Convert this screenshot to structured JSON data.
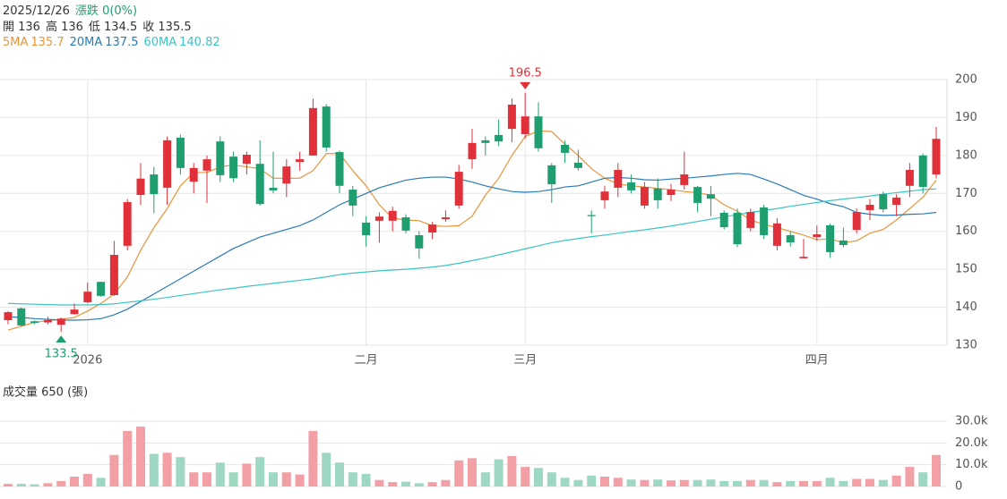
{
  "chart_data": [
    {
      "type": "candlestick",
      "info": {
        "date": "2025/12/26",
        "change": "漲跌 0(0%)",
        "open": "開 136",
        "high": "高 136",
        "low": "低 134.5",
        "close": "收 135.5"
      },
      "categories": [
        null,
        null,
        null,
        null,
        null,
        null,
        "2026",
        null,
        null,
        null,
        null,
        null,
        null,
        null,
        null,
        null,
        null,
        null,
        null,
        null,
        null,
        null,
        null,
        null,
        null,
        null,
        null,
        "二月",
        null,
        null,
        null,
        null,
        null,
        null,
        null,
        null,
        null,
        null,
        null,
        "三月",
        null,
        null,
        null,
        null,
        null,
        null,
        null,
        null,
        null,
        null,
        null,
        null,
        null,
        null,
        null,
        null,
        null,
        null,
        null,
        null,
        null,
        "四月",
        null,
        null,
        null,
        null,
        null,
        null,
        null,
        null,
        null
      ],
      "open": [
        136.6,
        139.7,
        136.3,
        136,
        135.4,
        138.2,
        141.3,
        146.7,
        143.2,
        156.2,
        169.6,
        175,
        171.5,
        184.7,
        173.1,
        176,
        183.7,
        179.7,
        177.8,
        177.8,
        171.5,
        172.6,
        178.3,
        180,
        192.9,
        180.9,
        171,
        162.3,
        162.8,
        162.8,
        163.7,
        159,
        159.7,
        163.2,
        166.8,
        179,
        184,
        185.4,
        187,
        185.6,
        190.3,
        177.4,
        182.8,
        178.1,
        164.3,
        168.2,
        171.5,
        172.9,
        166.8,
        171.3,
        169.6,
        172.2,
        171.7,
        169.8,
        164.9,
        164.9,
        160.9,
        166.3,
        156.2,
        159,
        152.9,
        158.5,
        161.6,
        157.6,
        160.4,
        165.6,
        169.8,
        167,
        172,
        180,
        175
      ],
      "high": [
        139,
        140,
        136.5,
        137.5,
        137.3,
        141,
        146.5,
        146.7,
        157.5,
        168.5,
        178,
        177,
        185,
        185.5,
        178,
        180,
        185,
        181,
        181,
        184,
        181,
        179,
        181,
        195,
        193.5,
        181.3,
        172,
        164,
        165,
        166.5,
        164.5,
        160,
        162.5,
        165.5,
        177.5,
        187,
        185,
        189.5,
        195,
        196.5,
        194,
        178,
        184,
        181.5,
        165.5,
        172,
        178,
        175,
        173,
        174,
        172.5,
        181,
        172,
        172,
        165.5,
        166,
        166,
        167,
        163.5,
        160,
        158,
        161.5,
        162,
        161,
        166,
        168.5,
        170.5,
        169.8,
        178,
        180.5,
        187.5
      ],
      "low": [
        135.5,
        135,
        135.5,
        135.5,
        133.5,
        138,
        141,
        142.8,
        143,
        155,
        167,
        164.8,
        167,
        175,
        170,
        167.5,
        173,
        173,
        175,
        166.8,
        170,
        169,
        176,
        180,
        181,
        170,
        164,
        156,
        157,
        160,
        159.5,
        152.8,
        158,
        162.5,
        166,
        176.5,
        180,
        182.5,
        183.5,
        184.5,
        181,
        167.5,
        178,
        176,
        159.5,
        166,
        169,
        170,
        166,
        166,
        168,
        171,
        165,
        164,
        160.5,
        155.8,
        160,
        158,
        155,
        156,
        152.9,
        157.5,
        153,
        155.8,
        159.5,
        163,
        165,
        164,
        169,
        170,
        174
      ],
      "close": [
        138.7,
        135.2,
        135.9,
        136.6,
        137,
        139.4,
        144.1,
        143,
        153.8,
        167.7,
        173.9,
        169.8,
        184,
        176.7,
        176.7,
        179,
        174.8,
        174,
        180.2,
        167.2,
        170.8,
        177.1,
        179,
        192.5,
        182.1,
        172,
        166.8,
        159,
        163.9,
        165.4,
        160.2,
        155.5,
        161.8,
        163.7,
        175.7,
        183.3,
        183.3,
        183.7,
        193.4,
        190.3,
        181.9,
        172.4,
        180.7,
        176.7,
        164,
        170.5,
        176.2,
        170.8,
        171.7,
        168.2,
        171,
        175,
        167.5,
        168.6,
        161.1,
        156.6,
        165.1,
        159,
        162.1,
        157.1,
        153.3,
        159.2,
        154.5,
        156.4,
        165.1,
        167,
        165.8,
        168.9,
        176.2,
        171.7,
        184.4
      ],
      "up_color": "#e0303a",
      "down_color": "#1f9e70",
      "series": [
        {
          "name": "5MA",
          "legend_value": 135.7,
          "color": "#e8953a",
          "values": [
            134,
            135,
            136,
            136.5,
            136.8,
            137.3,
            139,
            141,
            143.5,
            148,
            155,
            161,
            166,
            172,
            175.5,
            175.5,
            177,
            177.5,
            177,
            176.5,
            174,
            174,
            174,
            176,
            180.5,
            180.5,
            176,
            172,
            167,
            163.5,
            163,
            162.8,
            161.5,
            161.3,
            161.5,
            164,
            169.5,
            174,
            180,
            185,
            186.5,
            186.3,
            183,
            180,
            176.5,
            174,
            172.5,
            172,
            171.7,
            171.3,
            171,
            170.5,
            170.2,
            169.5,
            167,
            165.3,
            163,
            161.8,
            161,
            160,
            159,
            157.8,
            158,
            157,
            157.5,
            159.5,
            160.5,
            163,
            166,
            169,
            173.5
          ]
        },
        {
          "name": "20MA",
          "legend_value": 137.5,
          "color": "#2a7ab8",
          "values": [
            137.5,
            137.3,
            137,
            136.8,
            136.6,
            136.6,
            136.7,
            137,
            138,
            139.5,
            141.5,
            143.5,
            145.5,
            147.5,
            149.5,
            151.5,
            153.5,
            155.5,
            157,
            158.5,
            159.5,
            160.5,
            161.5,
            163,
            165,
            167,
            168.5,
            170,
            171.5,
            172.5,
            173.5,
            174,
            174.3,
            174.3,
            173.8,
            173,
            172,
            171.2,
            170.5,
            170.3,
            170.5,
            171,
            171.7,
            172,
            173,
            174,
            174.2,
            174,
            173.6,
            173.5,
            173.8,
            174,
            174.3,
            174.6,
            175,
            175.3,
            175,
            173.8,
            172.5,
            171,
            169.5,
            168.5,
            167.3,
            166.5,
            165,
            164.5,
            164.2,
            164.3,
            164.5,
            164.6,
            165
          ]
        },
        {
          "name": "60MA",
          "legend_value": 140.82,
          "color": "#3cc4c4",
          "values": [
            141,
            140.9,
            140.8,
            140.7,
            140.6,
            140.6,
            140.6,
            140.7,
            140.9,
            141.3,
            141.7,
            142.1,
            142.6,
            143.1,
            143.6,
            144.1,
            144.6,
            145,
            145.5,
            145.9,
            146.3,
            146.7,
            147.1,
            147.5,
            148,
            148.6,
            149,
            149.3,
            149.6,
            149.8,
            150,
            150.3,
            150.6,
            151,
            151.6,
            152.3,
            153,
            153.8,
            154.6,
            155.4,
            156.2,
            157,
            157.6,
            158.1,
            158.6,
            159,
            159.5,
            160,
            160.4,
            160.9,
            161.4,
            162,
            162.6,
            163.2,
            163.8,
            164.4,
            165,
            165.5,
            166,
            166.6,
            167.1,
            167.6,
            168.1,
            168.5,
            168.9,
            169.3,
            169.8,
            170.2,
            170.6,
            171,
            171.2
          ]
        }
      ],
      "max_label": 196.5,
      "min_label": 133.5,
      "ylim": [
        130,
        200
      ],
      "yticks": [
        130,
        140,
        150,
        160,
        170,
        180,
        190,
        200
      ],
      "grid": true
    },
    {
      "type": "volume",
      "title": "成交量 650 (張)",
      "values": [
        1200,
        1200,
        1000,
        1500,
        2500,
        4500,
        5800,
        4000,
        14500,
        25500,
        27500,
        15000,
        15500,
        13500,
        6500,
        6500,
        11000,
        6500,
        10500,
        13500,
        6500,
        6500,
        5500,
        25500,
        15500,
        11000,
        6500,
        5800,
        3000,
        2000,
        2200,
        1500,
        2000,
        3000,
        12000,
        13000,
        6500,
        12500,
        14000,
        9000,
        8500,
        6500,
        4000,
        3000,
        5000,
        4500,
        4000,
        3200,
        3000,
        3200,
        2800,
        3000,
        3000,
        3200,
        2500,
        2500,
        3000,
        3000,
        2000,
        2500,
        2500,
        2500,
        4000,
        2500,
        3500,
        3500,
        3000,
        5000,
        9000,
        6500,
        14500
      ],
      "up_color": "#f2a0a6",
      "down_color": "#9fd8c2",
      "ylim": [
        0,
        30000
      ],
      "yticks": [
        0,
        {
          "value": 10000,
          "label": "10.0k"
        },
        {
          "value": 20000,
          "label": "20.0k"
        },
        {
          "value": 30000,
          "label": "30.0k"
        }
      ],
      "grid": true
    }
  ]
}
